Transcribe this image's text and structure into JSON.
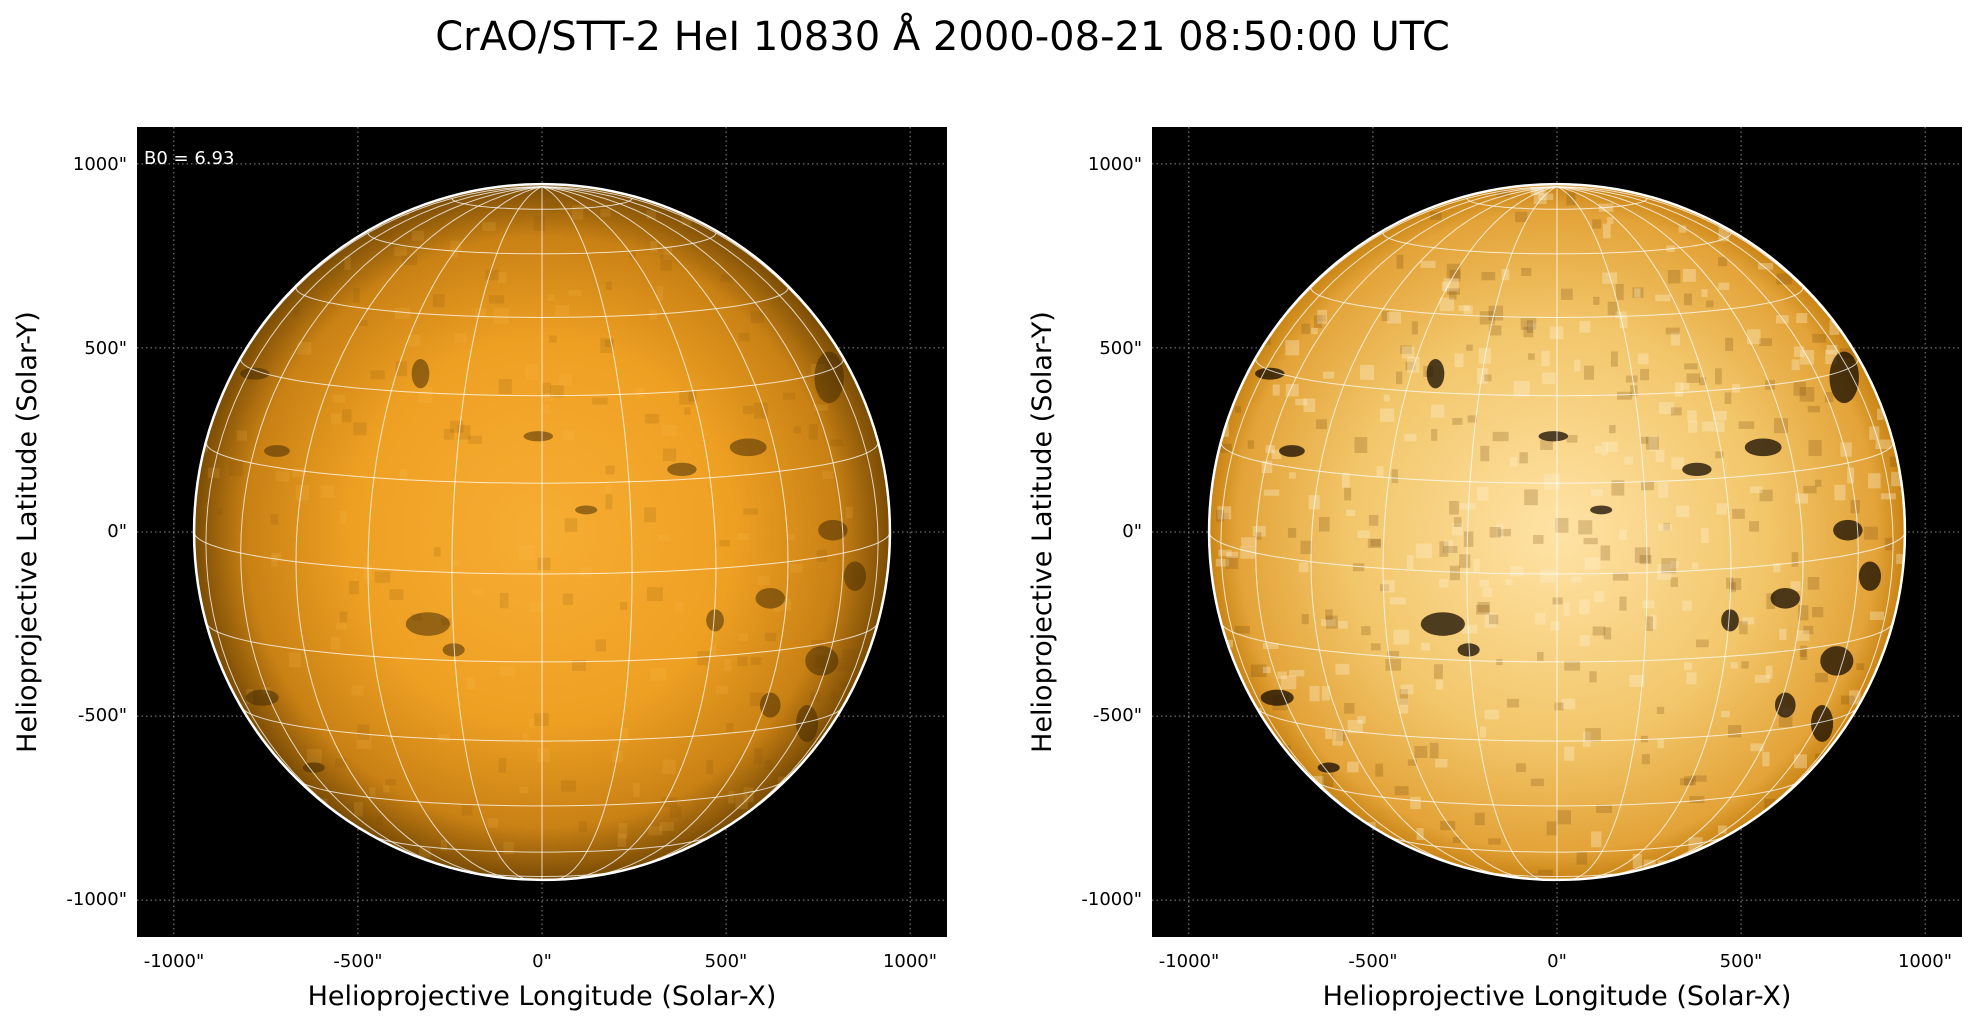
{
  "figure": {
    "title": "CrAO/STT-2 HeI 10830 Å 2000-08-21 08:50:00 UTC"
  },
  "panels": [
    {
      "name": "left",
      "annotation": "B0 = 6.93",
      "xlabel": "Helioprojective Longitude (Solar-X)",
      "ylabel": "Helioprojective Latitude (Solar-Y)",
      "xticks": [
        "-1000\"",
        "-500\"",
        "0\"",
        "500\"",
        "1000\""
      ],
      "yticks": [
        "1000\"",
        "500\"",
        "0\"",
        "-500\"",
        "-1000\""
      ],
      "colormap": {
        "bright": "#f3a423",
        "dark": "#7a4c05",
        "limb": "#ffffff",
        "background": "#000000"
      }
    },
    {
      "name": "right",
      "xlabel": "Helioprojective Longitude (Solar-X)",
      "ylabel": "Helioprojective Latitude (Solar-Y)",
      "xticks": [
        "-1000\"",
        "-500\"",
        "0\"",
        "500\"",
        "1000\""
      ],
      "yticks": [
        "1000\"",
        "500\"",
        "0\"",
        "-500\"",
        "-1000\""
      ],
      "colormap": {
        "bright": "#ffe3a6",
        "dark": "#2a1800",
        "limb": "#ffffff",
        "background": "#000000"
      }
    }
  ],
  "coordinates": {
    "axis_range_arcsec": [
      -1100,
      1100
    ],
    "tick_values_arcsec": [
      -1000,
      -500,
      0,
      500,
      1000
    ],
    "solar_radius_arcsec": 945,
    "b0_deg": 6.93,
    "grid_step_deg": 15
  }
}
